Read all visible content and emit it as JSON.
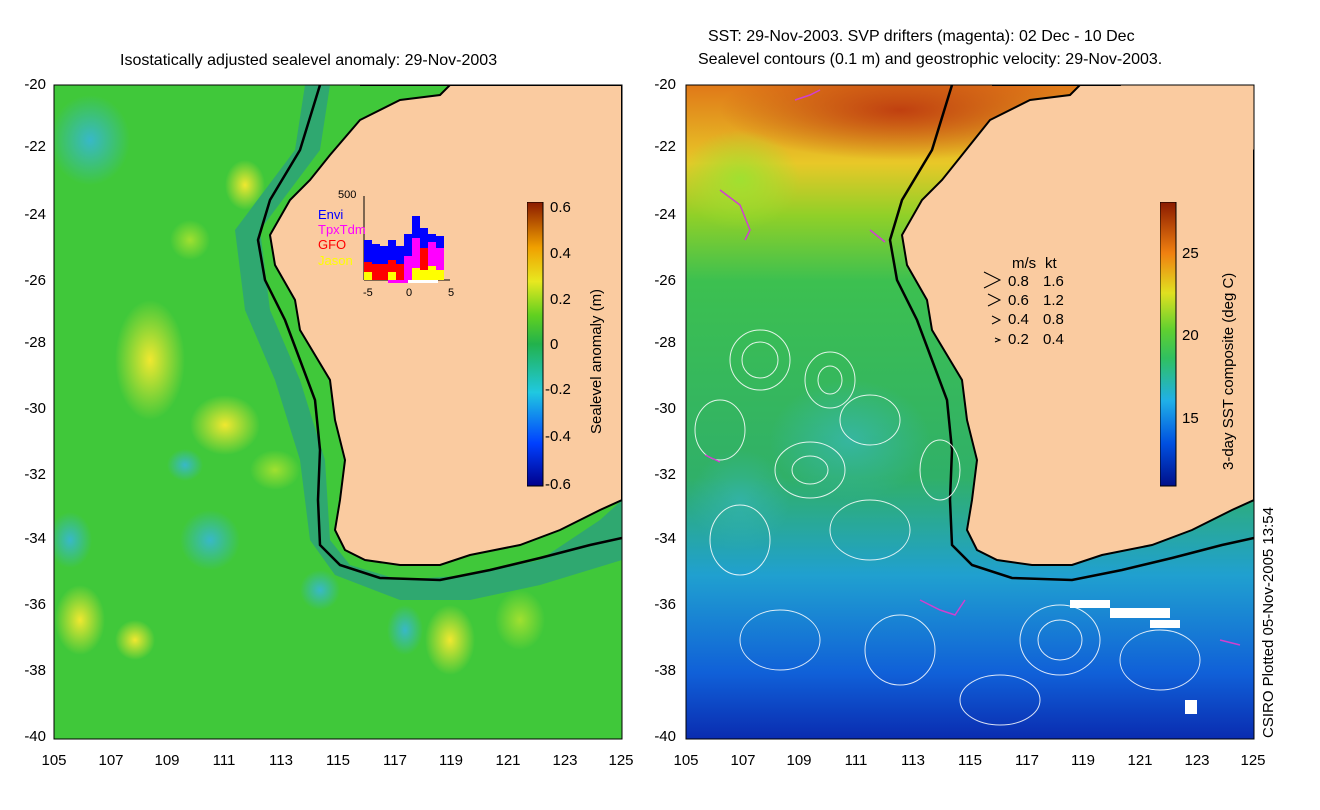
{
  "left_map": {
    "title": "Isostatically adjusted sealevel anomaly: 29-Nov-2003",
    "y_ticks": [
      "-20",
      "-22",
      "-24",
      "-26",
      "-28",
      "-30",
      "-32",
      "-34",
      "-36",
      "-38",
      "-40"
    ],
    "x_ticks": [
      "105",
      "107",
      "109",
      "111",
      "113",
      "115",
      "117",
      "119",
      "121",
      "123",
      "125"
    ],
    "colorbar": {
      "label": "Sealevel anomaly (m)",
      "ticks": [
        "0.6",
        "0.4",
        "0.2",
        "0",
        "-0.2",
        "-0.4",
        "-0.6"
      ]
    },
    "inset": {
      "count_label": "500",
      "legend": [
        "Envi",
        "TpxTdm",
        "GFO",
        "Jason"
      ],
      "legend_colors": [
        "#0000ff",
        "#ff00ff",
        "#ff0000",
        "#ffff00"
      ],
      "x_ticks": [
        "-5",
        "0",
        "5"
      ]
    }
  },
  "right_map": {
    "title_line1": "SST: 29-Nov-2003. SVP drifters (magenta): 02 Dec - 10 Dec",
    "title_line2": "Sealevel contours (0.1 m) and geostrophic velocity: 29-Nov-2003.",
    "y_ticks": [
      "-20",
      "-22",
      "-24",
      "-26",
      "-28",
      "-30",
      "-32",
      "-34",
      "-36",
      "-38",
      "-40"
    ],
    "x_ticks": [
      "105",
      "107",
      "109",
      "111",
      "113",
      "115",
      "117",
      "119",
      "121",
      "123",
      "125"
    ],
    "colorbar": {
      "label": "3-day SST composite (deg C)",
      "ticks": [
        "25",
        "20",
        "15"
      ]
    },
    "velocity_legend": {
      "header_ms": "m/s",
      "header_kt": "kt",
      "rows": [
        {
          "ms": "0.8",
          "kt": "1.6"
        },
        {
          "ms": "0.6",
          "kt": "1.2"
        },
        {
          "ms": "0.4",
          "kt": "0.8"
        },
        {
          "ms": "0.2",
          "kt": "0.4"
        }
      ]
    }
  },
  "footer": {
    "credit": "CSIRO Plotted 05-Nov-2005 13:54"
  },
  "colors": {
    "land": "#facba0",
    "coast": "#000000",
    "shelf": "#2fa85a",
    "ocean_green": "#3ec63a",
    "contour": "#ffffff",
    "drifter": "#d040d0"
  }
}
